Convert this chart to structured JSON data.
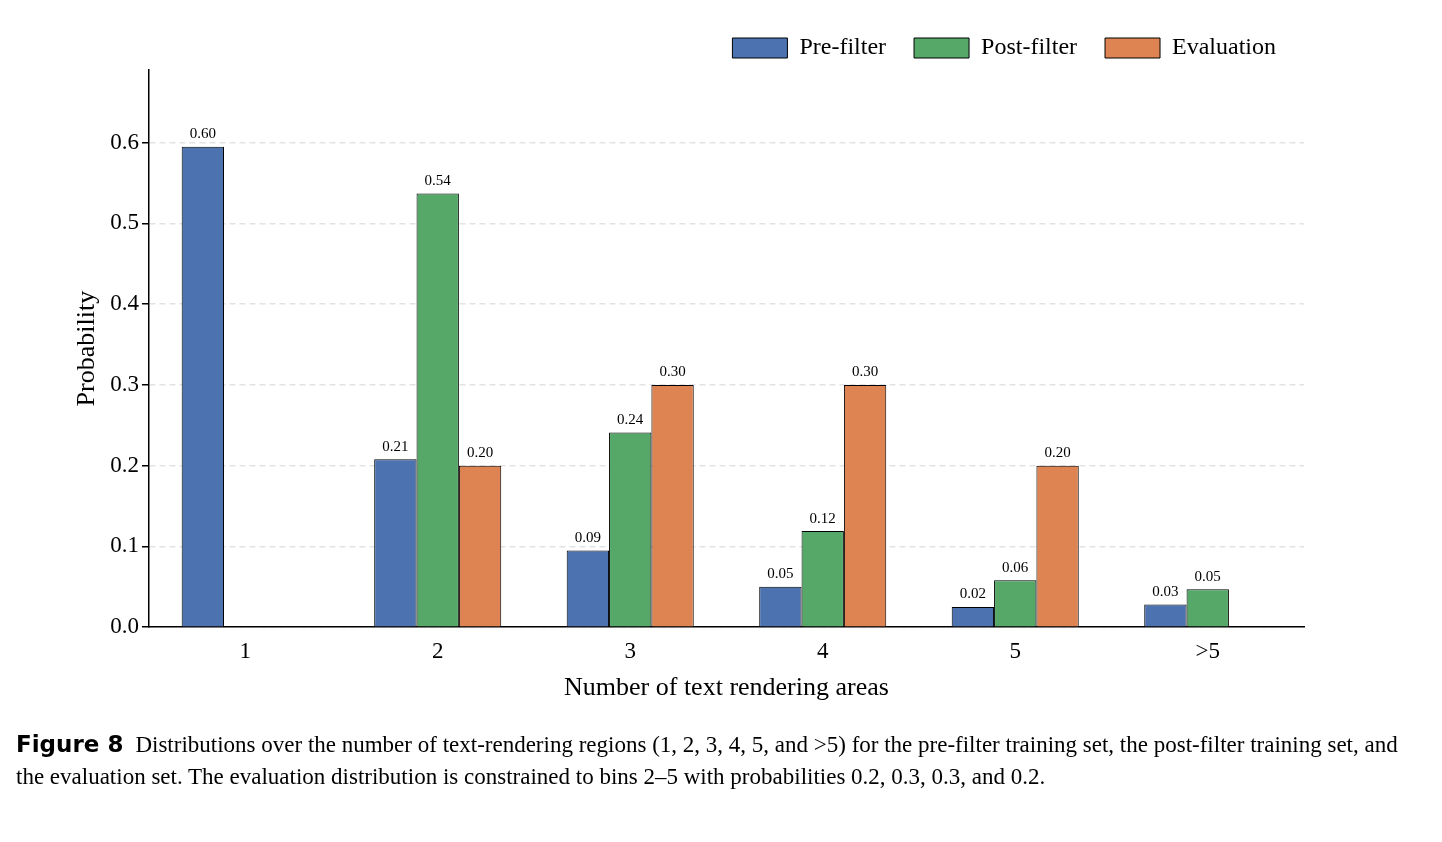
{
  "chart_data": {
    "type": "bar",
    "xlabel": "Number of text rendering areas",
    "ylabel": "Probability",
    "categories": [
      "1",
      "2",
      "3",
      "4",
      "5",
      ">5"
    ],
    "series": [
      {
        "name": "Pre-filter",
        "color": "#4c72b0",
        "values": [
          0.595,
          0.208,
          0.095,
          0.05,
          0.025,
          0.028
        ],
        "value_labels": [
          "0.60",
          "0.21",
          "0.09",
          "0.05",
          "0.02",
          "0.03"
        ]
      },
      {
        "name": "Post-filter",
        "color": "#55a868",
        "values": [
          0,
          0.537,
          0.241,
          0.119,
          0.058,
          0.047
        ],
        "value_labels": [
          null,
          "0.54",
          "0.24",
          "0.12",
          "0.06",
          "0.05"
        ]
      },
      {
        "name": "Evaluation",
        "color": "#dd8452",
        "values": [
          0,
          0.2,
          0.3,
          0.3,
          0.2,
          0
        ],
        "value_labels": [
          null,
          "0.20",
          "0.30",
          "0.30",
          "0.20",
          null
        ]
      }
    ],
    "ylim": [
      0,
      0.69
    ],
    "yticks": [
      {
        "value": 0,
        "label": "0.0"
      },
      0.1,
      0.2,
      0.3,
      0.4,
      0.5,
      0.6
    ],
    "grid": "y",
    "legend": "top right",
    "annotations": [
      "Figure 8",
      "Distributions over the number of text-rendering regions (1, 2, 3, 4, 5, and >5) for the pre-filter training set, the post-filter training set, and the evaluation set. The evaluation distribution is constrained to bins 2–5 with probabilities 0.2, 0.3, 0.3, and 0.2."
    ]
  }
}
